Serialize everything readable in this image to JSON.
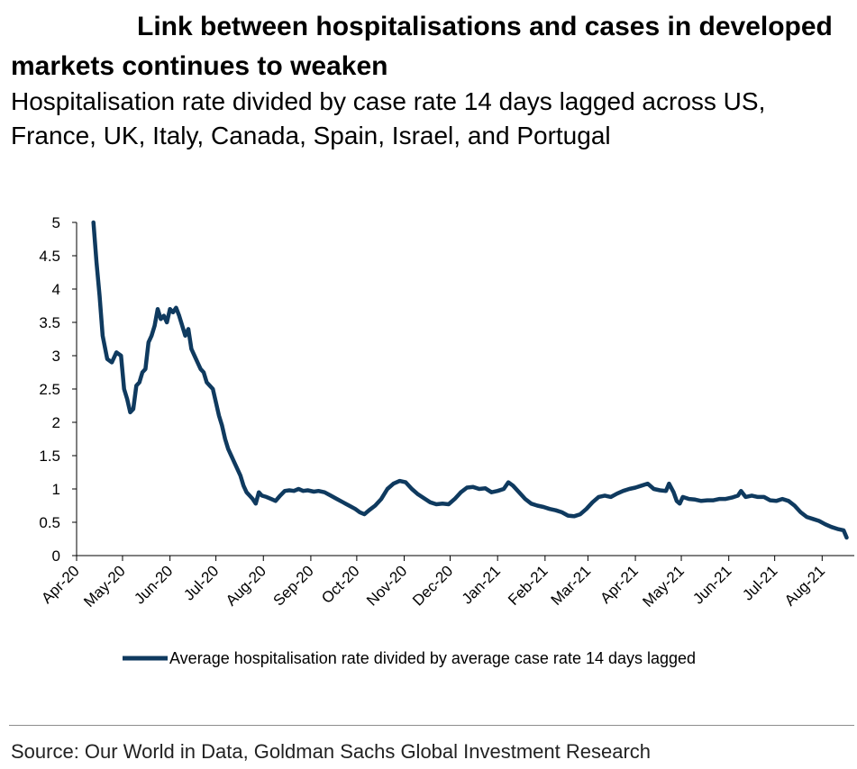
{
  "chart_data": {
    "type": "line",
    "title": "Link between hospitalisations and cases in developed markets continues to weaken",
    "subtitle": "Hospitalisation rate divided by case rate 14 days lagged across US, France, UK, Italy, Canada, Spain, Israel, and Portugal",
    "xlabel": "",
    "ylabel": "",
    "ylim": [
      0,
      5
    ],
    "yticks": [
      "0",
      "0.5",
      "1",
      "1.5",
      "2",
      "2.5",
      "3",
      "3.5",
      "4",
      "4.5",
      "5"
    ],
    "xticks": [
      "Apr-20",
      "May-20",
      "Jun-20",
      "Jul-20",
      "Aug-20",
      "Sep-20",
      "Oct-20",
      "Nov-20",
      "Dec-20",
      "Jan-21",
      "Feb-21",
      "Mar-21",
      "Apr-21",
      "May-21",
      "Jun-21",
      "Jul-21",
      "Aug-21"
    ],
    "grid": false,
    "legend": "bottom-center",
    "line_color": "#0f3a5f",
    "series": [
      {
        "name": "Average hospitalisation rate divided by average case rate 14 days lagged",
        "points": [
          [
            "2020-04-12",
            5.0
          ],
          [
            "2020-04-14",
            4.4
          ],
          [
            "2020-04-16",
            3.9
          ],
          [
            "2020-04-18",
            3.3
          ],
          [
            "2020-04-21",
            2.95
          ],
          [
            "2020-04-24",
            2.9
          ],
          [
            "2020-04-27",
            3.05
          ],
          [
            "2020-04-30",
            3.0
          ],
          [
            "2020-05-02",
            2.5
          ],
          [
            "2020-05-04",
            2.35
          ],
          [
            "2020-05-06",
            2.15
          ],
          [
            "2020-05-08",
            2.2
          ],
          [
            "2020-05-10",
            2.55
          ],
          [
            "2020-05-12",
            2.6
          ],
          [
            "2020-05-14",
            2.75
          ],
          [
            "2020-05-16",
            2.8
          ],
          [
            "2020-05-18",
            3.2
          ],
          [
            "2020-05-20",
            3.3
          ],
          [
            "2020-05-22",
            3.45
          ],
          [
            "2020-05-24",
            3.7
          ],
          [
            "2020-05-26",
            3.55
          ],
          [
            "2020-05-28",
            3.6
          ],
          [
            "2020-05-30",
            3.5
          ],
          [
            "2020-06-01",
            3.7
          ],
          [
            "2020-06-03",
            3.65
          ],
          [
            "2020-06-05",
            3.72
          ],
          [
            "2020-06-07",
            3.6
          ],
          [
            "2020-06-09",
            3.45
          ],
          [
            "2020-06-11",
            3.3
          ],
          [
            "2020-06-13",
            3.4
          ],
          [
            "2020-06-15",
            3.1
          ],
          [
            "2020-06-17",
            3.0
          ],
          [
            "2020-06-19",
            2.9
          ],
          [
            "2020-06-21",
            2.8
          ],
          [
            "2020-06-23",
            2.75
          ],
          [
            "2020-06-25",
            2.6
          ],
          [
            "2020-06-27",
            2.55
          ],
          [
            "2020-06-29",
            2.5
          ],
          [
            "2020-07-01",
            2.3
          ],
          [
            "2020-07-03",
            2.1
          ],
          [
            "2020-07-05",
            1.95
          ],
          [
            "2020-07-07",
            1.75
          ],
          [
            "2020-07-09",
            1.6
          ],
          [
            "2020-07-11",
            1.5
          ],
          [
            "2020-07-13",
            1.4
          ],
          [
            "2020-07-15",
            1.3
          ],
          [
            "2020-07-17",
            1.2
          ],
          [
            "2020-07-19",
            1.05
          ],
          [
            "2020-07-21",
            0.95
          ],
          [
            "2020-07-23",
            0.9
          ],
          [
            "2020-07-25",
            0.85
          ],
          [
            "2020-07-27",
            0.78
          ],
          [
            "2020-07-29",
            0.95
          ],
          [
            "2020-07-31",
            0.9
          ],
          [
            "2020-08-03",
            0.88
          ],
          [
            "2020-08-06",
            0.85
          ],
          [
            "2020-08-09",
            0.82
          ],
          [
            "2020-08-12",
            0.9
          ],
          [
            "2020-08-15",
            0.97
          ],
          [
            "2020-08-18",
            0.98
          ],
          [
            "2020-08-21",
            0.97
          ],
          [
            "2020-08-24",
            1.0
          ],
          [
            "2020-08-27",
            0.97
          ],
          [
            "2020-08-30",
            0.98
          ],
          [
            "2020-09-03",
            0.96
          ],
          [
            "2020-09-06",
            0.97
          ],
          [
            "2020-09-10",
            0.95
          ],
          [
            "2020-09-14",
            0.9
          ],
          [
            "2020-09-18",
            0.85
          ],
          [
            "2020-09-22",
            0.8
          ],
          [
            "2020-09-26",
            0.75
          ],
          [
            "2020-09-30",
            0.7
          ],
          [
            "2020-10-03",
            0.65
          ],
          [
            "2020-10-06",
            0.62
          ],
          [
            "2020-10-09",
            0.68
          ],
          [
            "2020-10-13",
            0.75
          ],
          [
            "2020-10-17",
            0.85
          ],
          [
            "2020-10-21",
            1.0
          ],
          [
            "2020-10-25",
            1.08
          ],
          [
            "2020-10-29",
            1.12
          ],
          [
            "2020-11-02",
            1.1
          ],
          [
            "2020-11-06",
            1.0
          ],
          [
            "2020-11-10",
            0.92
          ],
          [
            "2020-11-14",
            0.86
          ],
          [
            "2020-11-18",
            0.8
          ],
          [
            "2020-11-22",
            0.77
          ],
          [
            "2020-11-26",
            0.78
          ],
          [
            "2020-11-30",
            0.77
          ],
          [
            "2020-12-04",
            0.85
          ],
          [
            "2020-12-08",
            0.95
          ],
          [
            "2020-12-12",
            1.02
          ],
          [
            "2020-12-16",
            1.03
          ],
          [
            "2020-12-20",
            1.0
          ],
          [
            "2020-12-24",
            1.01
          ],
          [
            "2020-12-28",
            0.95
          ],
          [
            "2021-01-01",
            0.97
          ],
          [
            "2021-01-05",
            1.0
          ],
          [
            "2021-01-08",
            1.1
          ],
          [
            "2021-01-11",
            1.05
          ],
          [
            "2021-01-15",
            0.95
          ],
          [
            "2021-01-19",
            0.85
          ],
          [
            "2021-01-23",
            0.78
          ],
          [
            "2021-01-27",
            0.75
          ],
          [
            "2021-01-31",
            0.73
          ],
          [
            "2021-02-04",
            0.7
          ],
          [
            "2021-02-08",
            0.68
          ],
          [
            "2021-02-12",
            0.65
          ],
          [
            "2021-02-16",
            0.6
          ],
          [
            "2021-02-20",
            0.59
          ],
          [
            "2021-02-24",
            0.62
          ],
          [
            "2021-02-28",
            0.7
          ],
          [
            "2021-03-04",
            0.8
          ],
          [
            "2021-03-08",
            0.88
          ],
          [
            "2021-03-12",
            0.9
          ],
          [
            "2021-03-16",
            0.88
          ],
          [
            "2021-03-20",
            0.93
          ],
          [
            "2021-03-24",
            0.97
          ],
          [
            "2021-03-28",
            1.0
          ],
          [
            "2021-04-01",
            1.02
          ],
          [
            "2021-04-05",
            1.05
          ],
          [
            "2021-04-09",
            1.08
          ],
          [
            "2021-04-13",
            1.0
          ],
          [
            "2021-04-17",
            0.98
          ],
          [
            "2021-04-21",
            0.97
          ],
          [
            "2021-04-23",
            1.08
          ],
          [
            "2021-04-26",
            0.95
          ],
          [
            "2021-04-28",
            0.82
          ],
          [
            "2021-04-30",
            0.78
          ],
          [
            "2021-05-02",
            0.88
          ],
          [
            "2021-05-06",
            0.85
          ],
          [
            "2021-05-10",
            0.84
          ],
          [
            "2021-05-14",
            0.82
          ],
          [
            "2021-05-18",
            0.83
          ],
          [
            "2021-05-22",
            0.83
          ],
          [
            "2021-05-26",
            0.85
          ],
          [
            "2021-05-30",
            0.85
          ],
          [
            "2021-06-03",
            0.87
          ],
          [
            "2021-06-07",
            0.9
          ],
          [
            "2021-06-09",
            0.97
          ],
          [
            "2021-06-12",
            0.88
          ],
          [
            "2021-06-16",
            0.9
          ],
          [
            "2021-06-20",
            0.88
          ],
          [
            "2021-06-24",
            0.88
          ],
          [
            "2021-06-28",
            0.83
          ],
          [
            "2021-07-02",
            0.82
          ],
          [
            "2021-07-06",
            0.85
          ],
          [
            "2021-07-10",
            0.82
          ],
          [
            "2021-07-14",
            0.75
          ],
          [
            "2021-07-18",
            0.65
          ],
          [
            "2021-07-22",
            0.58
          ],
          [
            "2021-07-26",
            0.55
          ],
          [
            "2021-07-30",
            0.52
          ],
          [
            "2021-08-03",
            0.47
          ],
          [
            "2021-08-07",
            0.43
          ],
          [
            "2021-08-11",
            0.4
          ],
          [
            "2021-08-15",
            0.38
          ],
          [
            "2021-08-17",
            0.27
          ]
        ]
      }
    ],
    "source": "Source: Our World in Data, Goldman Sachs Global Investment Research"
  }
}
